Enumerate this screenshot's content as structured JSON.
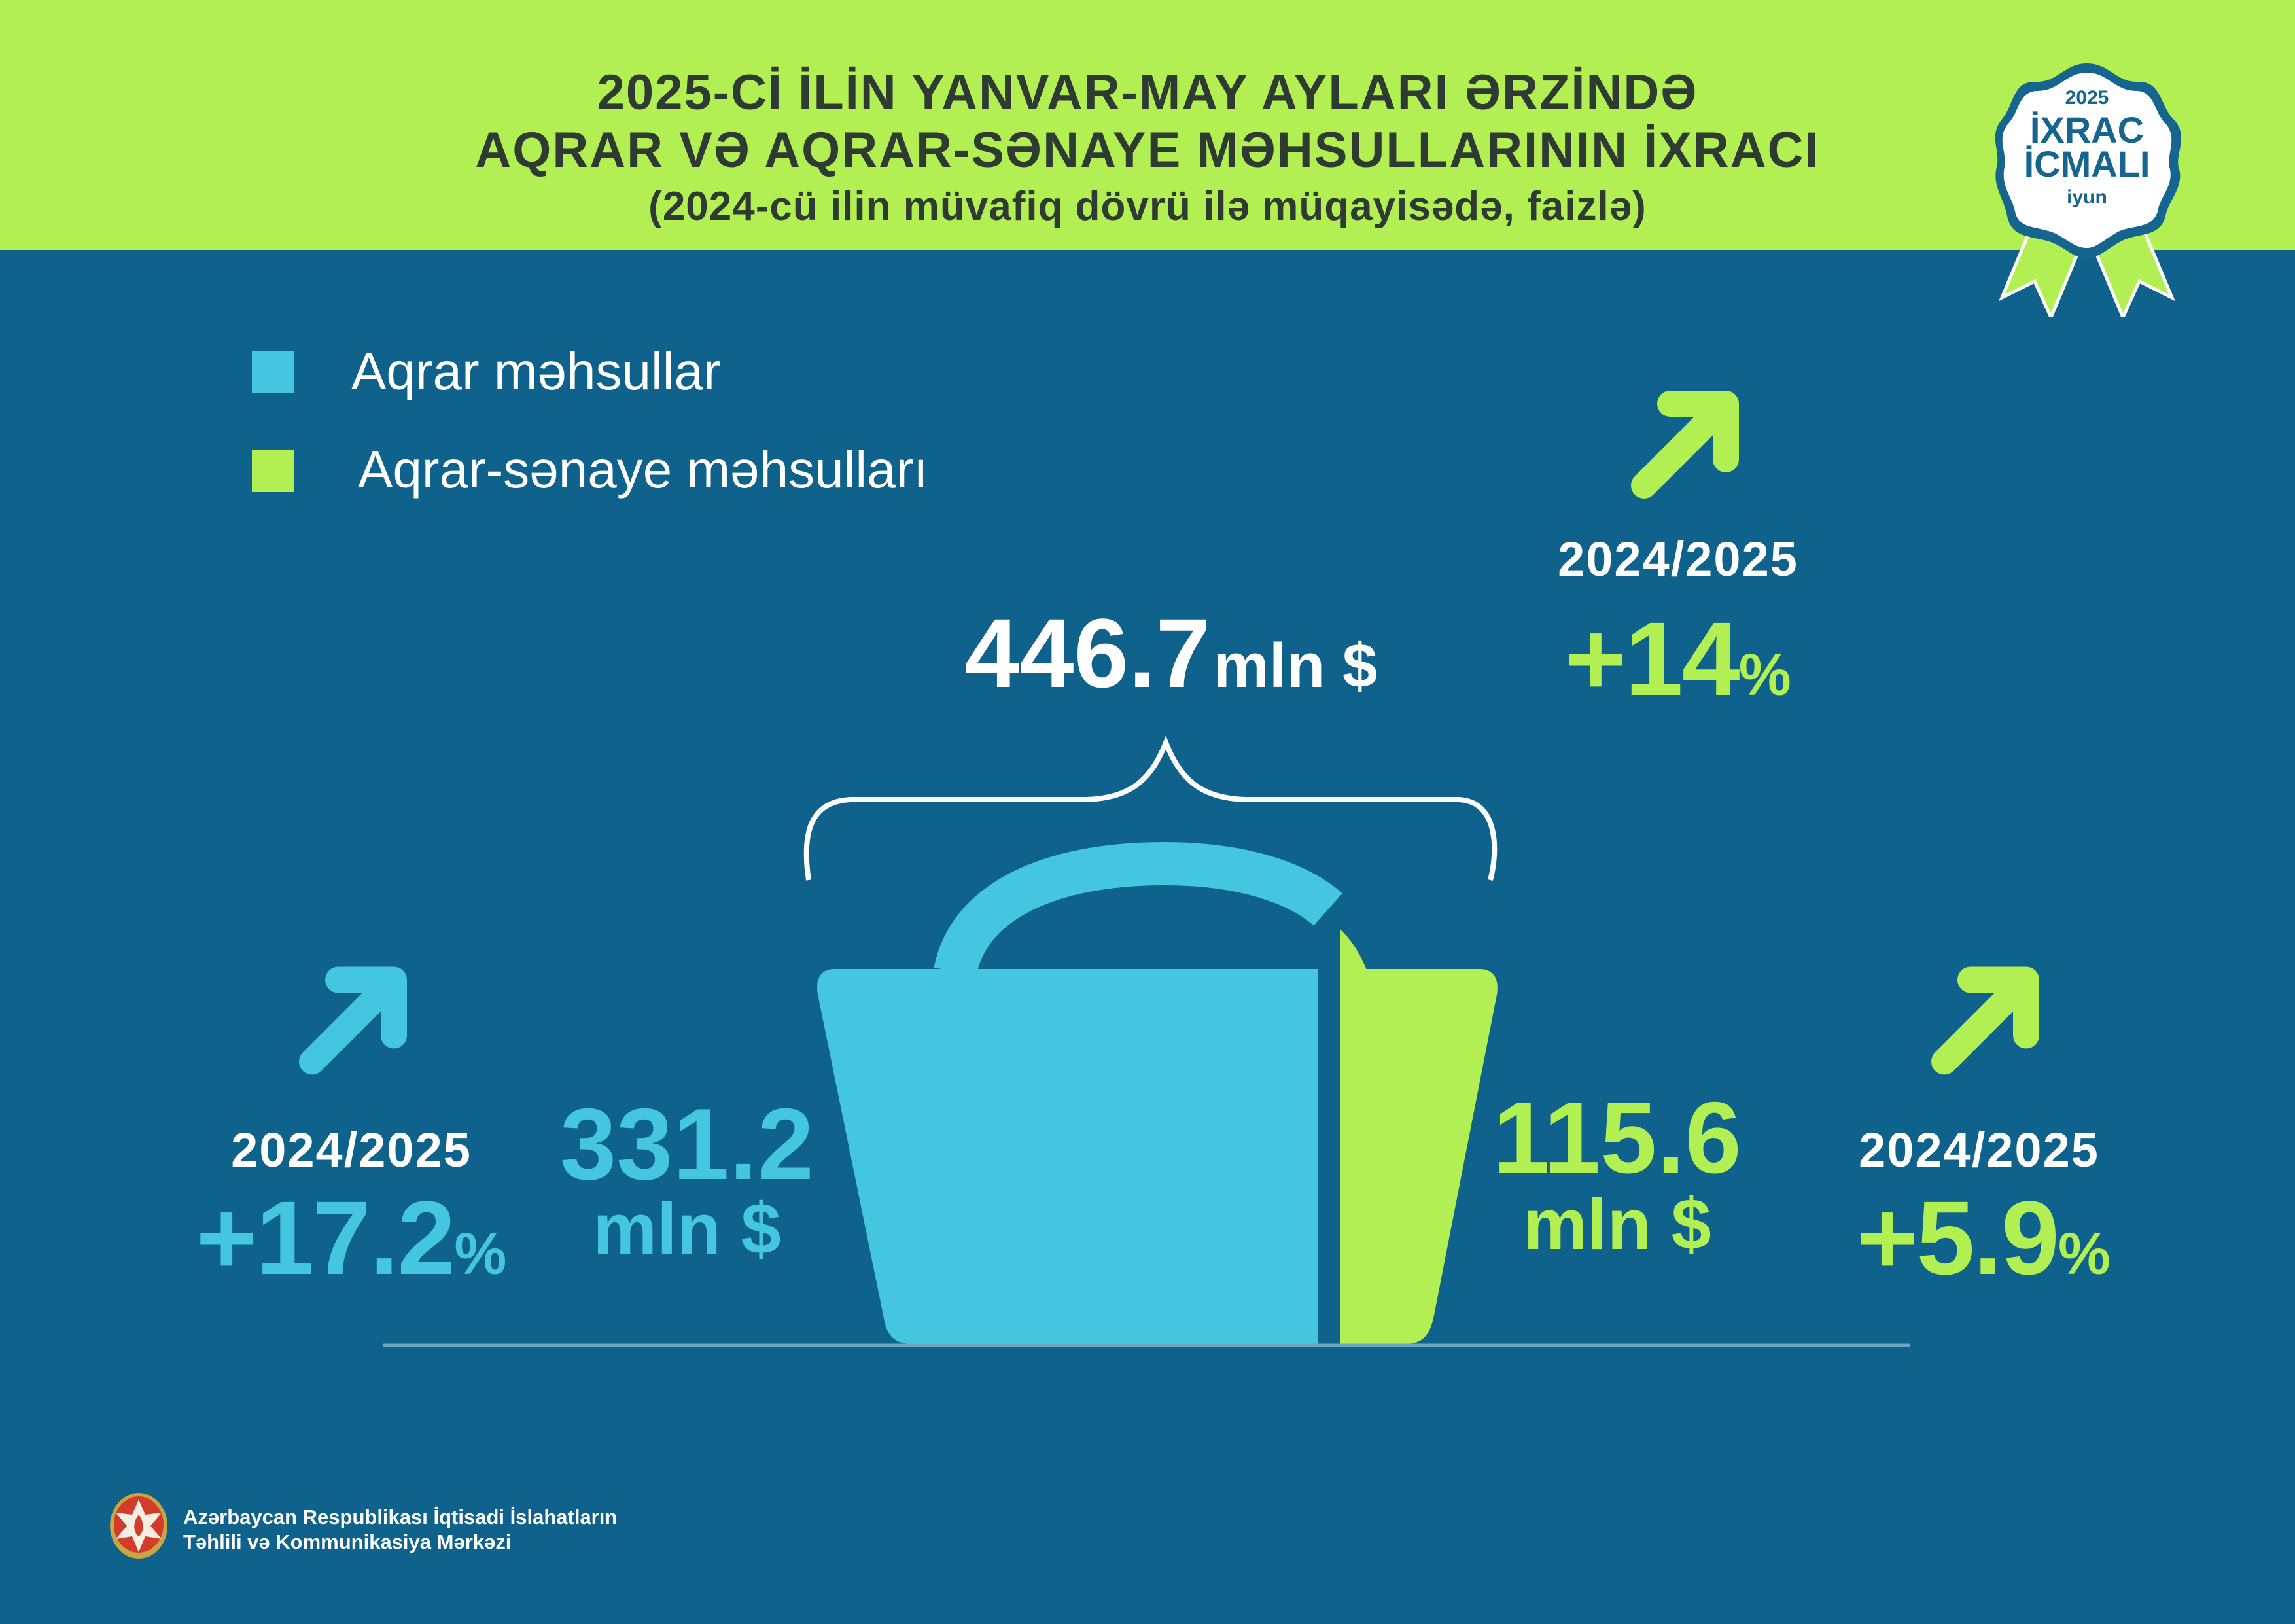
{
  "header": {
    "title_line1": "2025-Cİ İLİN YANVAR-MAY AYLARI ƏRZİNDƏ",
    "title_line2": "AQRAR VƏ AQRAR-SƏNAYE MƏHSULLARININ İXRACI",
    "subtitle": "(2024-cü ilin müvafiq dövrü ilə müqayisədə, faizlə)"
  },
  "badge": {
    "year": "2025",
    "line1": "İXRAC",
    "line2": "İCMALI",
    "month": "iyun"
  },
  "legend": [
    {
      "label": "Aqrar məhsullar",
      "color": "#44c6e0"
    },
    {
      "label": "Aqrar-sənaye məhsulları",
      "color": "#b2ef52"
    }
  ],
  "total": {
    "value": "446.7",
    "unit": "mln $",
    "period": "2024/2025",
    "change": "+14",
    "percent_sign": "%",
    "trend": "up-arrow-icon"
  },
  "agrarian": {
    "value": "331.2",
    "unit": "mln $",
    "period": "2024/2025",
    "change": "+17.2",
    "percent_sign": "%",
    "trend": "up-arrow-icon",
    "share": 0.741
  },
  "agro_industrial": {
    "value": "115.6",
    "unit": "mln $",
    "period": "2024/2025",
    "change": "+5.9",
    "percent_sign": "%",
    "trend": "up-arrow-icon",
    "share": 0.259
  },
  "colors": {
    "background": "#0f628b",
    "header": "#b2ef52",
    "agrarian": "#44c6e0",
    "agro_industrial": "#b2ef52"
  },
  "footer": {
    "org_line1": "Azərbaycan Respublikası İqtisadi İslahatların",
    "org_line2": "Təhlili və Kommunikasiya Mərkəzi"
  }
}
